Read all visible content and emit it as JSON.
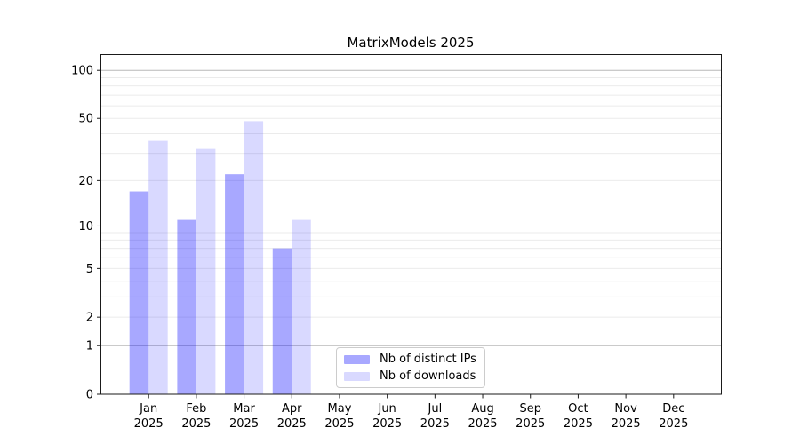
{
  "chart_data": {
    "type": "bar",
    "title": "MatrixModels 2025",
    "y_scale": "log10(1+x)",
    "months": [
      "Jan",
      "Feb",
      "Mar",
      "Apr",
      "May",
      "Jun",
      "Jul",
      "Aug",
      "Sep",
      "Oct",
      "Nov",
      "Dec"
    ],
    "year": "2025",
    "categories": [
      "Jan 2025",
      "Feb 2025",
      "Mar 2025",
      "Apr 2025",
      "May 2025",
      "Jun 2025",
      "Jul 2025",
      "Aug 2025",
      "Sep 2025",
      "Oct 2025",
      "Nov 2025",
      "Dec 2025"
    ],
    "series": [
      {
        "name": "Nb of distinct IPs",
        "color_hex": "#a9a9fa",
        "fill": "rgba(0,0,255,0.34)",
        "values": [
          17,
          11,
          22,
          7,
          0,
          0,
          0,
          0,
          0,
          0,
          0,
          0
        ]
      },
      {
        "name": "Nb of downloads",
        "color_hex": "#d9d9fa",
        "fill": "rgba(0,0,255,0.15)",
        "values": [
          36,
          32,
          48,
          11,
          0,
          0,
          0,
          0,
          0,
          0,
          0,
          0
        ]
      }
    ],
    "y_ticks": [
      0,
      1,
      2,
      5,
      10,
      20,
      50,
      100
    ],
    "major_gridlines": [
      1,
      10,
      100
    ],
    "minor_gridlines": [
      2,
      3,
      4,
      5,
      6,
      7,
      8,
      9,
      20,
      30,
      40,
      50,
      60,
      70,
      80,
      90
    ],
    "ylim": [
      0,
      125
    ],
    "grid": "horizontal",
    "legend_position": "lower center"
  },
  "colors": {
    "axis": "#1a1a1a",
    "major_grid": "#b8b8b8",
    "minor_grid": "#ebebeb",
    "legend_border": "#cccccc",
    "text": "#000000",
    "background": "#ffffff"
  }
}
